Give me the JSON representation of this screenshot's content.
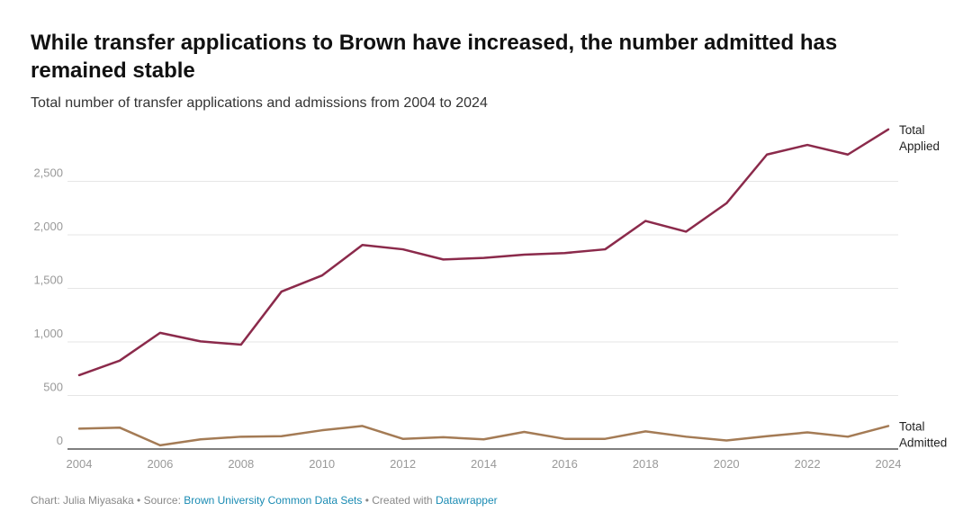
{
  "title": "While transfer applications to Brown have increased, the number admitted has remained stable",
  "subtitle": "Total number of transfer applications and admissions from 2004 to 2024",
  "footer": {
    "chart_prefix": "Chart: Julia Miyasaka",
    "sep1": " • Source: ",
    "source_link": "Brown University Common Data Sets",
    "sep2": " • Created with ",
    "tool_link": "Datawrapper"
  },
  "colors": {
    "applied": "#8b2a4b",
    "admitted": "#a47b55",
    "grid": "#e6e6e6",
    "axis": "#333333"
  },
  "chart_data": {
    "type": "line",
    "x": [
      2004,
      2005,
      2006,
      2007,
      2008,
      2009,
      2010,
      2011,
      2012,
      2013,
      2014,
      2015,
      2016,
      2017,
      2018,
      2019,
      2020,
      2021,
      2022,
      2023,
      2024
    ],
    "series": [
      {
        "name": "Total Applied",
        "label_lines": [
          "Total",
          "Applied"
        ],
        "values": [
          690,
          825,
          1085,
          1005,
          975,
          1470,
          1620,
          1905,
          1865,
          1770,
          1785,
          1815,
          1830,
          1865,
          2130,
          2030,
          2295,
          2750,
          2840,
          2750,
          2985
        ]
      },
      {
        "name": "Total Admitted",
        "label_lines": [
          "Total",
          "Admitted"
        ],
        "values": [
          190,
          200,
          35,
          90,
          115,
          120,
          175,
          215,
          95,
          110,
          90,
          160,
          95,
          95,
          165,
          115,
          80,
          120,
          155,
          115,
          215
        ]
      }
    ],
    "xticks": [
      2004,
      2006,
      2008,
      2010,
      2012,
      2014,
      2016,
      2018,
      2020,
      2022,
      2024
    ],
    "yticks": [
      0,
      500,
      1000,
      1500,
      2000,
      2500
    ],
    "ytick_labels": [
      "0",
      "500",
      "1,000",
      "1,500",
      "2,000",
      "2,500"
    ],
    "xlim": [
      2004,
      2024
    ],
    "ylim": [
      0,
      3000
    ],
    "grid": true,
    "legend": "direct labels at line ends"
  }
}
